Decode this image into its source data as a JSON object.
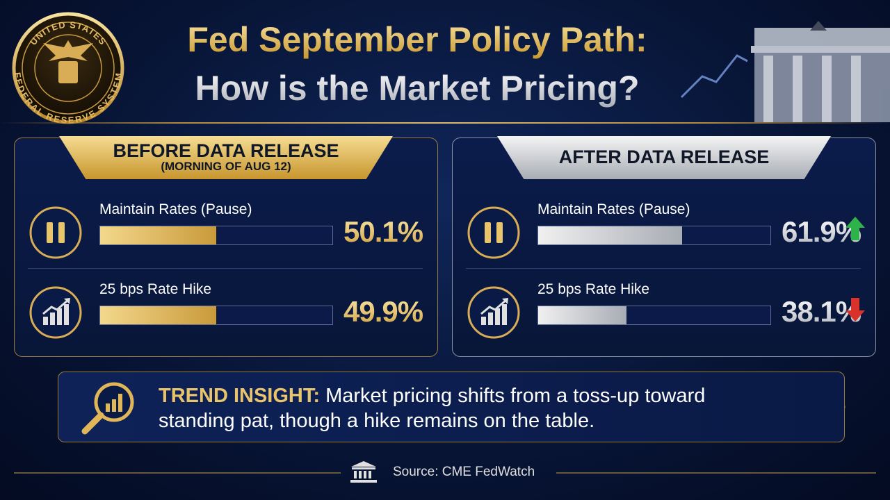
{
  "seal": {
    "top_text": "UNITED STATES",
    "bottom_text": "FEDERAL RESERVE SYSTEM"
  },
  "header": {
    "title_line1": "Fed September Policy Path:",
    "title_line2": "How is the Market Pricing?"
  },
  "bar_range": [
    0,
    100
  ],
  "panels": [
    {
      "title": "BEFORE DATA RELEASE",
      "subtitle": "(MORNING OF AUG 12)",
      "style": "gold",
      "options": [
        {
          "label": "Maintain Rates (Pause)",
          "value": 50.1,
          "value_label": "50.1%",
          "icon": "pause"
        },
        {
          "label": "25 bps Rate Hike",
          "value": 49.9,
          "value_label": "49.9%",
          "icon": "growth"
        }
      ]
    },
    {
      "title": "AFTER DATA RELEASE",
      "style": "silver",
      "options": [
        {
          "label": "Maintain Rates (Pause)",
          "value": 61.9,
          "value_label": "61.9%",
          "icon": "pause",
          "trend": "up"
        },
        {
          "label": "25 bps Rate Hike",
          "value": 38.1,
          "value_label": "38.1%",
          "icon": "growth",
          "trend": "down"
        }
      ]
    }
  ],
  "insight": {
    "label": "TREND INSIGHT:",
    "text": "Market pricing shifts from a toss-up toward standing pat, though a hike remains on the table."
  },
  "source": "Source: CME FedWatch"
}
